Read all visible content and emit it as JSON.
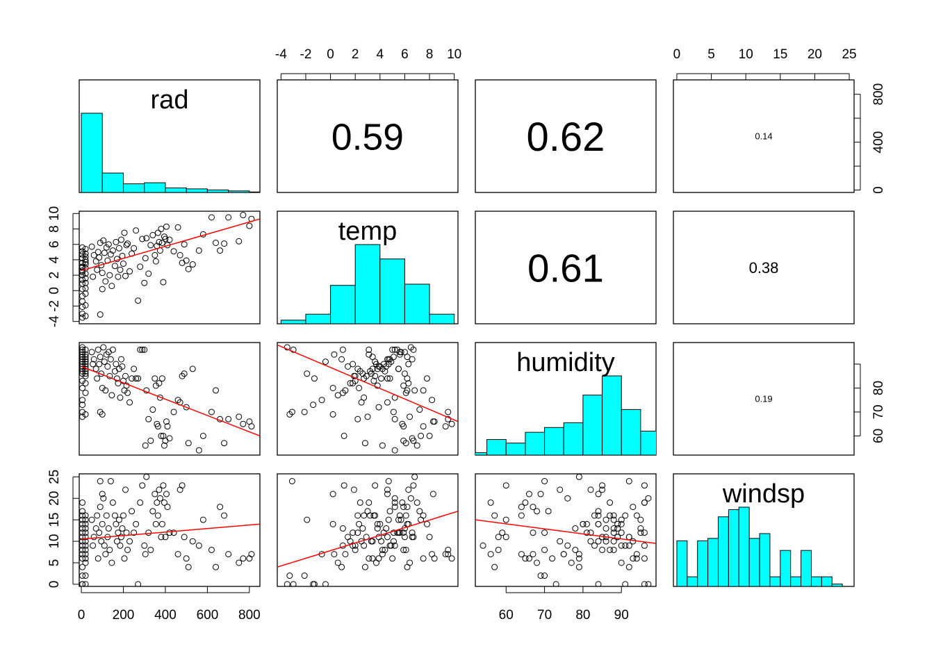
{
  "chart_data": {
    "type": "scatter",
    "title": "",
    "variables": [
      {
        "name": "rad",
        "range": [
          -10,
          850
        ],
        "ticks": [
          0,
          200,
          400,
          600,
          800
        ]
      },
      {
        "name": "temp",
        "range": [
          -4.3,
          10.3
        ],
        "ticks": [
          -4,
          -2,
          0,
          2,
          4,
          6,
          8,
          10
        ]
      },
      {
        "name": "humidity",
        "range": [
          52,
          99
        ],
        "ticks": [
          60,
          70,
          80,
          90
        ]
      },
      {
        "name": "windsp",
        "range": [
          -0.5,
          25.7
        ],
        "ticks": [
          0,
          5,
          10,
          15,
          20,
          25
        ]
      }
    ],
    "correlations": [
      {
        "row": 0,
        "col": 1,
        "value": "0.59"
      },
      {
        "row": 0,
        "col": 2,
        "value": "0.62"
      },
      {
        "row": 0,
        "col": 3,
        "value": "0.14"
      },
      {
        "row": 1,
        "col": 2,
        "value": "0.61"
      },
      {
        "row": 1,
        "col": 3,
        "value": "0.38"
      },
      {
        "row": 2,
        "col": 3,
        "value": "0.19"
      }
    ],
    "histograms": {
      "rad": {
        "breaks": [
          0,
          100,
          200,
          300,
          400,
          500,
          600,
          700,
          800,
          900
        ],
        "counts": [
          155,
          38,
          17,
          19,
          9,
          7,
          5,
          3,
          1
        ]
      },
      "temp": {
        "breaks": [
          -4,
          -2,
          0,
          2,
          4,
          6,
          8,
          10
        ],
        "counts": [
          3,
          8,
          32,
          66,
          54,
          33,
          8
        ]
      },
      "humidity": {
        "breaks": [
          50,
          55,
          60,
          65,
          70,
          75,
          80,
          85,
          90,
          95,
          100
        ],
        "counts": [
          2,
          13,
          10,
          19,
          23,
          27,
          50,
          66,
          38,
          20
        ]
      },
      "windsp": {
        "breaks": [
          0,
          1.5,
          3,
          4.5,
          6,
          7.5,
          9,
          10.5,
          12,
          13.5,
          15,
          16.5,
          18,
          19.5,
          21,
          22.5,
          24,
          25.5
        ],
        "counts": [
          19,
          4,
          19,
          20,
          29,
          32,
          33,
          20,
          22,
          4,
          15,
          4,
          15,
          4,
          4,
          1,
          0
        ]
      }
    },
    "fit_lines": {
      "rad_temp": [
        [
          0,
          2.6
        ],
        [
          850,
          9.3
        ]
      ],
      "rad_humidity": [
        [
          0,
          89
        ],
        [
          850,
          60
        ]
      ],
      "rad_windsp": [
        [
          0,
          10.5
        ],
        [
          850,
          14
        ]
      ],
      "temp_humidity": [
        [
          -4.3,
          98
        ],
        [
          10.3,
          66
        ]
      ],
      "temp_windsp": [
        [
          -4.3,
          4
        ],
        [
          10.3,
          17
        ]
      ],
      "humidity_windsp": [
        [
          52,
          15
        ],
        [
          99,
          9.5
        ]
      ]
    },
    "observations": [
      [
        5,
        5.6,
        95,
        12
      ],
      [
        5,
        5.1,
        93,
        10
      ],
      [
        5,
        4.7,
        90,
        15
      ],
      [
        5,
        4.2,
        88,
        8
      ],
      [
        5,
        3.6,
        91,
        16
      ],
      [
        5,
        3.1,
        94,
        6
      ],
      [
        5,
        2.6,
        86,
        13
      ],
      [
        5,
        2.0,
        83,
        9
      ],
      [
        5,
        1.4,
        89,
        11
      ],
      [
        5,
        0.9,
        92,
        4
      ],
      [
        5,
        0.2,
        80,
        14
      ],
      [
        5,
        -0.7,
        75,
        7
      ],
      [
        5,
        -1.4,
        73,
        0
      ],
      [
        5,
        -2.1,
        70,
        2
      ],
      [
        5,
        -3.0,
        96,
        0
      ],
      [
        5,
        -3.5,
        97,
        0
      ],
      [
        5,
        3.0,
        68,
        17
      ],
      [
        5,
        2.4,
        87,
        19
      ],
      [
        20,
        5.4,
        96,
        12
      ],
      [
        20,
        4.8,
        92,
        9
      ],
      [
        20,
        4.0,
        89,
        14
      ],
      [
        20,
        3.4,
        93,
        6
      ],
      [
        20,
        2.9,
        85,
        11
      ],
      [
        20,
        2.2,
        88,
        16
      ],
      [
        20,
        1.6,
        82,
        10
      ],
      [
        20,
        1.0,
        78,
        13
      ],
      [
        20,
        0.3,
        94,
        7
      ],
      [
        20,
        -0.4,
        91,
        0
      ],
      [
        20,
        -1.9,
        86,
        15
      ],
      [
        20,
        -3.3,
        69,
        2
      ],
      [
        20,
        3.7,
        90,
        5
      ],
      [
        20,
        4.4,
        87,
        8
      ],
      [
        50,
        5.7,
        95,
        15
      ],
      [
        60,
        4.6,
        92,
        11
      ],
      [
        70,
        3.8,
        88,
        13
      ],
      [
        75,
        2.7,
        84,
        16
      ],
      [
        55,
        1.8,
        90,
        9
      ],
      [
        80,
        5.0,
        96,
        6
      ],
      [
        90,
        6.2,
        93,
        18
      ],
      [
        85,
        4.3,
        90,
        12
      ],
      [
        95,
        3.3,
        86,
        10
      ],
      [
        100,
        2.3,
        80,
        14
      ],
      [
        105,
        6.5,
        97,
        20
      ],
      [
        110,
        4.9,
        91,
        9
      ],
      [
        115,
        1.2,
        79,
        7
      ],
      [
        120,
        5.6,
        94,
        16
      ],
      [
        125,
        3.9,
        89,
        11
      ],
      [
        130,
        6.0,
        95,
        13
      ],
      [
        135,
        2.0,
        85,
        8
      ],
      [
        140,
        4.7,
        92,
        24
      ],
      [
        145,
        0.6,
        77,
        5
      ],
      [
        150,
        5.2,
        96,
        19
      ],
      [
        90,
        -3.1,
        70,
        24
      ],
      [
        100,
        0.2,
        69,
        21
      ],
      [
        160,
        3.2,
        87,
        16
      ],
      [
        165,
        6.3,
        90,
        14
      ],
      [
        170,
        4.1,
        84,
        10
      ],
      [
        175,
        1.8,
        82,
        12
      ],
      [
        180,
        5.5,
        88,
        15
      ],
      [
        185,
        2.7,
        76,
        9
      ],
      [
        190,
        6.6,
        92,
        11
      ],
      [
        195,
        4.5,
        89,
        13
      ],
      [
        200,
        3.5,
        83,
        16
      ],
      [
        205,
        7.5,
        79,
        6
      ],
      [
        210,
        1.9,
        85,
        22
      ],
      [
        215,
        5.9,
        81,
        12
      ],
      [
        220,
        6.1,
        78,
        8
      ],
      [
        230,
        2.5,
        74,
        10
      ],
      [
        240,
        4.8,
        84,
        17
      ],
      [
        250,
        5.5,
        88,
        12
      ],
      [
        260,
        7.8,
        84,
        14
      ],
      [
        270,
        -1.3,
        84,
        0
      ],
      [
        280,
        3.1,
        96,
        19
      ],
      [
        290,
        6.7,
        96,
        23
      ],
      [
        300,
        1.0,
        96,
        9
      ],
      [
        305,
        4.2,
        56,
        7
      ],
      [
        310,
        6.8,
        79,
        25
      ],
      [
        320,
        2.2,
        67,
        12
      ],
      [
        330,
        5.9,
        58,
        8
      ],
      [
        340,
        7.2,
        71,
        17
      ],
      [
        350,
        4.6,
        84,
        21
      ],
      [
        355,
        3.8,
        81,
        14
      ],
      [
        360,
        5.8,
        65,
        19
      ],
      [
        365,
        7.5,
        64,
        16
      ],
      [
        370,
        6.3,
        82,
        22
      ],
      [
        375,
        5.2,
        76,
        20
      ],
      [
        380,
        8.0,
        60,
        11
      ],
      [
        385,
        6.2,
        84,
        14
      ],
      [
        390,
        1.1,
        60,
        23
      ],
      [
        395,
        7.0,
        56,
        19
      ],
      [
        400,
        6.7,
        58,
        11
      ],
      [
        405,
        8.3,
        66,
        21
      ],
      [
        410,
        5.9,
        64,
        18
      ],
      [
        420,
        6.6,
        59,
        12
      ],
      [
        440,
        5.1,
        70,
        12
      ],
      [
        460,
        8.2,
        75,
        7
      ],
      [
        470,
        4.6,
        74,
        22
      ],
      [
        480,
        3.6,
        85,
        23
      ],
      [
        490,
        6.0,
        86,
        11
      ],
      [
        500,
        3.9,
        72,
        6
      ],
      [
        510,
        2.8,
        57,
        4
      ],
      [
        530,
        3.4,
        88,
        10
      ],
      [
        560,
        5.2,
        54,
        9
      ],
      [
        580,
        7.3,
        60,
        15
      ],
      [
        620,
        9.5,
        70,
        8
      ],
      [
        640,
        6.2,
        79,
        4
      ],
      [
        660,
        5.2,
        67,
        18
      ],
      [
        680,
        6.1,
        57,
        16
      ],
      [
        700,
        9.5,
        67,
        7
      ],
      [
        750,
        6.4,
        68,
        5
      ],
      [
        770,
        9.8,
        65,
        6
      ],
      [
        800,
        8.4,
        66,
        6
      ],
      [
        810,
        9.3,
        64,
        7
      ]
    ]
  }
}
